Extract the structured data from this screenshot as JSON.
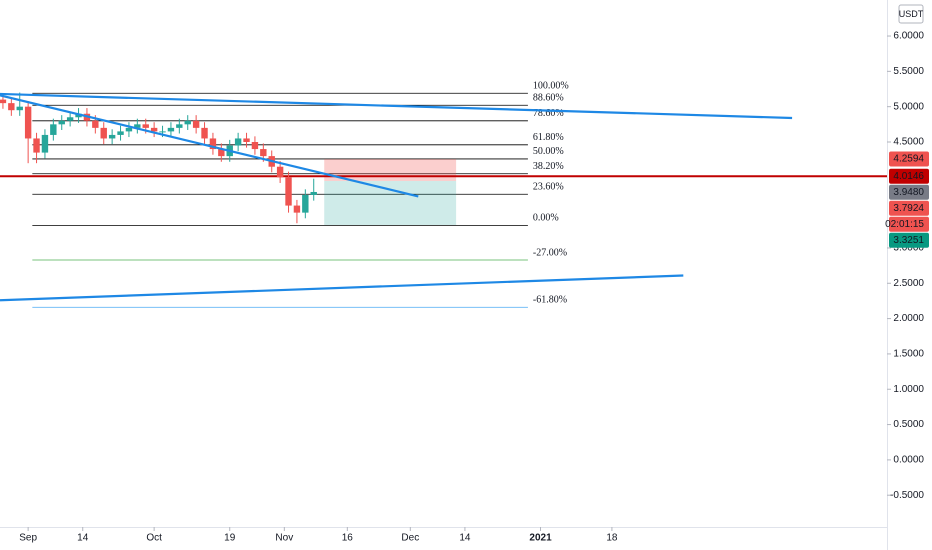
{
  "chart_data": {
    "type": "candlestick",
    "currency": "USDT",
    "x": [
      -6,
      -4,
      -2,
      0,
      2,
      4,
      6,
      8,
      10,
      12,
      14,
      16,
      18,
      20,
      22,
      24,
      26,
      28,
      30,
      32,
      34,
      36,
      38,
      40,
      42,
      44,
      46,
      48,
      50,
      52,
      54,
      56,
      58,
      60,
      62,
      64,
      66,
      68
    ],
    "open": [
      5.1,
      5.05,
      4.95,
      5.0,
      4.55,
      4.35,
      4.6,
      4.75,
      4.8,
      4.85,
      4.9,
      4.8,
      4.7,
      4.55,
      4.6,
      4.65,
      4.7,
      4.75,
      4.7,
      4.65,
      4.65,
      4.7,
      4.75,
      4.8,
      4.7,
      4.55,
      4.4,
      4.3,
      4.45,
      4.55,
      4.5,
      4.4,
      4.3,
      4.15,
      4.0,
      3.6,
      3.5,
      3.75
    ],
    "high": [
      5.18,
      5.13,
      5.2,
      5.08,
      4.63,
      4.68,
      4.83,
      4.88,
      4.93,
      4.98,
      4.98,
      4.88,
      4.78,
      4.68,
      4.73,
      4.78,
      4.83,
      4.83,
      4.78,
      4.73,
      4.78,
      4.83,
      4.88,
      4.88,
      4.78,
      4.63,
      4.48,
      4.53,
      4.63,
      4.63,
      4.58,
      4.48,
      4.38,
      4.23,
      4.08,
      3.68,
      3.83,
      3.98
    ],
    "low": [
      4.97,
      4.87,
      4.87,
      4.2,
      4.2,
      4.27,
      4.52,
      4.67,
      4.72,
      4.77,
      4.72,
      4.62,
      4.47,
      4.47,
      4.52,
      4.57,
      4.62,
      4.62,
      4.57,
      4.57,
      4.57,
      4.62,
      4.67,
      4.62,
      4.47,
      4.32,
      4.22,
      4.22,
      4.37,
      4.42,
      4.32,
      4.22,
      4.07,
      3.92,
      3.5,
      3.35,
      3.42,
      3.67
    ],
    "close": [
      5.05,
      4.95,
      5.0,
      4.55,
      4.35,
      4.6,
      4.75,
      4.8,
      4.85,
      4.9,
      4.8,
      4.7,
      4.55,
      4.6,
      4.65,
      4.7,
      4.75,
      4.7,
      4.65,
      4.65,
      4.7,
      4.75,
      4.8,
      4.7,
      4.55,
      4.4,
      4.3,
      4.45,
      4.55,
      4.5,
      4.4,
      4.3,
      4.15,
      4.0,
      3.6,
      3.5,
      3.75,
      3.7924
    ],
    "up_color": "#26a69a",
    "down_color": "#ef5350",
    "xlim": [
      -6.7,
      204.5
    ],
    "xticks": [
      {
        "value": 0,
        "label": "Sep"
      },
      {
        "value": 13,
        "label": "14"
      },
      {
        "value": 30,
        "label": "Oct"
      },
      {
        "value": 48,
        "label": "19"
      },
      {
        "value": 61,
        "label": "Nov"
      },
      {
        "value": 76,
        "label": "16"
      },
      {
        "value": 91,
        "label": "Dec"
      },
      {
        "value": 104,
        "label": "14"
      },
      {
        "value": 122,
        "label": "2021"
      },
      {
        "value": 139,
        "label": "18"
      }
    ],
    "ylim": [
      -0.95,
      6.51
    ],
    "yticks": [
      {
        "value": 6,
        "label": "6.0000"
      },
      {
        "value": 5.5,
        "label": "5.5000"
      },
      {
        "value": 5,
        "label": "5.0000"
      },
      {
        "value": 4.5,
        "label": "4.5000"
      },
      {
        "value": 3,
        "label": "3.0000"
      },
      {
        "value": 2.5,
        "label": "2.5000"
      },
      {
        "value": 2,
        "label": "2.0000"
      },
      {
        "value": 1.5,
        "label": "1.5000"
      },
      {
        "value": 1,
        "label": "1.0000"
      },
      {
        "value": 0.5,
        "label": "0.5000"
      },
      {
        "value": 0,
        "label": "0.0000"
      },
      {
        "value": -0.5,
        "label": "-0.5000"
      }
    ],
    "trendlines": [
      {
        "from": [
          -6.7,
          5.18
        ],
        "to": [
          181.9,
          4.84
        ],
        "color": "#1e88e5"
      },
      {
        "from": [
          -6.7,
          5.16
        ],
        "to": [
          92.9,
          3.73
        ],
        "color": "#1e88e5"
      },
      {
        "from": [
          -6.7,
          2.26
        ],
        "to": [
          156,
          2.61
        ],
        "color": "#1e88e5"
      }
    ],
    "hline": {
      "value": 4.0146,
      "color": "#c00000"
    },
    "fib": {
      "x": [
        1,
        119
      ],
      "levels": [
        {
          "name": "100.00%",
          "price": 5.19,
          "color": "#000000"
        },
        {
          "name": "88.60%",
          "price": 5.02,
          "color": "#000000"
        },
        {
          "name": "78.60%",
          "price": 4.8,
          "color": "#000000"
        },
        {
          "name": "61.80%",
          "price": 4.46,
          "color": "#000000"
        },
        {
          "name": "50.00%",
          "price": 4.26,
          "color": "#000000"
        },
        {
          "name": "38.20%",
          "price": 4.05,
          "color": "#000000"
        },
        {
          "name": "23.60%",
          "price": 3.76,
          "color": "#000000"
        },
        {
          "name": "0.00%",
          "price": 3.32,
          "color": "#000000"
        },
        {
          "name": "-27.00%",
          "price": 2.83,
          "color": "#4caf50"
        },
        {
          "name": "-61.80%",
          "price": 2.16,
          "color": "#64b5f6"
        }
      ]
    },
    "position": {
      "x": [
        70.5,
        101.9
      ],
      "stop": 4.2594,
      "entry": 3.948,
      "target": 3.3251
    },
    "price_labels": [
      {
        "value": 4.2594,
        "label": "4.2594",
        "color": "#ef5350"
      },
      {
        "value": 4.0146,
        "label": "4.0146",
        "color": "#c00000"
      },
      {
        "value": 3.948,
        "label": "3.9480",
        "color": "#787b86"
      },
      {
        "value": 3.7924,
        "label": "3.7924",
        "color": "#ef5350"
      },
      {
        "value": 3.3251,
        "label": "3.3251",
        "color": "#089981"
      }
    ],
    "countdown": "02:01:15"
  }
}
